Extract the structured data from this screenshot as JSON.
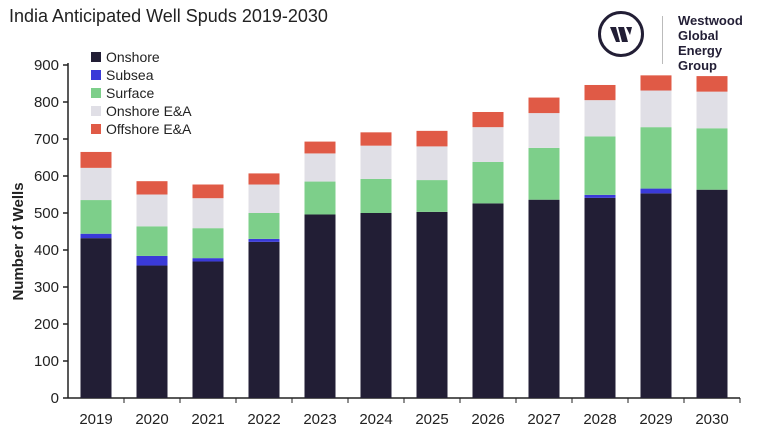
{
  "chart_data": {
    "type": "bar",
    "stacked": true,
    "title": "India Anticipated Well Spuds 2019-2030",
    "xlabel": "",
    "ylabel": "Number of Wells",
    "ylim": [
      0,
      900
    ],
    "yticks": [
      0,
      100,
      200,
      300,
      400,
      500,
      600,
      700,
      800,
      900
    ],
    "grid": false,
    "legend_position": "top-left",
    "categories": [
      "2019",
      "2020",
      "2021",
      "2022",
      "2023",
      "2024",
      "2025",
      "2026",
      "2027",
      "2028",
      "2029",
      "2030"
    ],
    "series": [
      {
        "name": "Onshore",
        "color": "#221E35",
        "values": [
          432,
          358,
          369,
          422,
          496,
          500,
          503,
          526,
          536,
          541,
          553,
          563
        ]
      },
      {
        "name": "Subsea",
        "color": "#3A3AD8",
        "values": [
          12,
          26,
          9,
          8,
          0,
          0,
          0,
          0,
          0,
          8,
          13,
          0
        ]
      },
      {
        "name": "Surface",
        "color": "#7DCF8A",
        "values": [
          91,
          80,
          81,
          70,
          89,
          92,
          86,
          112,
          140,
          158,
          166,
          166
        ]
      },
      {
        "name": "Onshore E&A",
        "color": "#E0DFE6",
        "values": [
          87,
          86,
          81,
          77,
          76,
          90,
          91,
          94,
          94,
          98,
          99,
          99
        ]
      },
      {
        "name": "Offshore E&A",
        "color": "#E05A46",
        "values": [
          43,
          36,
          37,
          30,
          32,
          36,
          42,
          41,
          42,
          41,
          41,
          42
        ]
      }
    ]
  },
  "logo": {
    "lines": [
      "Westwood",
      "Global Energy",
      "Group"
    ],
    "mark": "w"
  }
}
